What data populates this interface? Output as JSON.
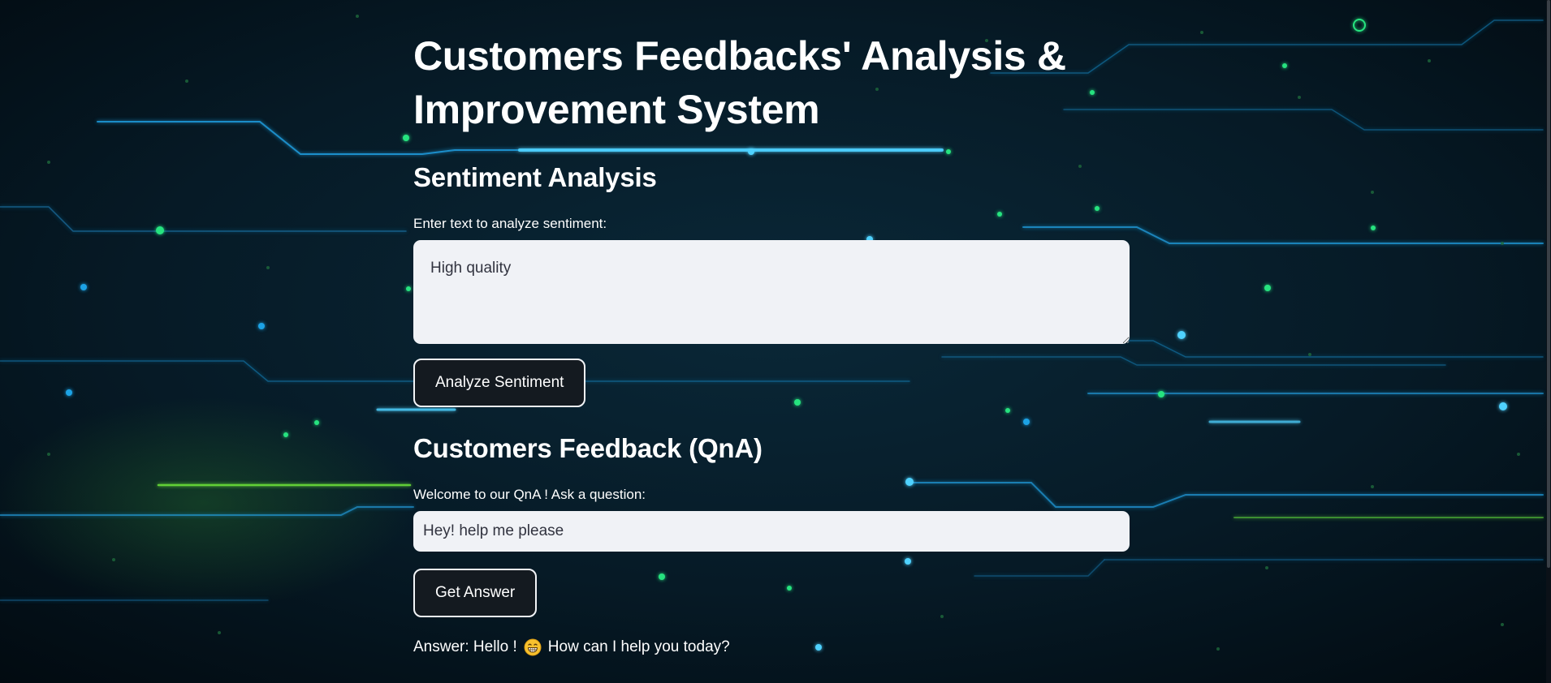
{
  "title": "Customers Feedbacks' Analysis & Improvement System",
  "sentiment": {
    "heading": "Sentiment Analysis",
    "label": "Enter text to analyze sentiment:",
    "value": "High quality",
    "button": "Analyze Sentiment"
  },
  "qna": {
    "heading": "Customers Feedback (QnA)",
    "label": "Welcome to our QnA ! Ask a question:",
    "value": "Hey! help me please",
    "button": "Get Answer",
    "answer_prefix": "Answer: Hello !",
    "answer_emoji": "grinning-face-icon",
    "answer_suffix": "How can I help you today?"
  },
  "colors": {
    "background": "#041018",
    "circuit_blue": "#1fa3e6",
    "circuit_green": "#27e37f",
    "input_bg": "#f0f2f6",
    "input_text": "#31333f",
    "button_bg": "#141a20"
  }
}
